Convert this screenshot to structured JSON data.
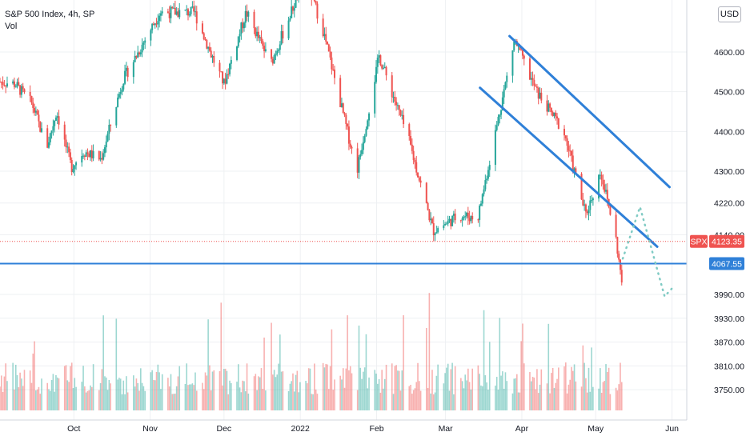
{
  "legend": {
    "symbol_line": "S&P 500 Index, 4h, SP",
    "volume_label": "Vol"
  },
  "currency_button": {
    "label": "USD"
  },
  "colors": {
    "up": "#26a69a",
    "down": "#ef5350",
    "drawing": "#2f80d8",
    "projection": "#80cbc4",
    "price_line": "#ef5350",
    "grid": "#eef0f3"
  },
  "chart_data": {
    "type": "candlestick",
    "interval": "4h",
    "y_ticks": [
      "4600.00",
      "4500.00",
      "4400.00",
      "4300.00",
      "4220.00",
      "4140.00",
      "3990.00",
      "3930.00",
      "3870.00",
      "3810.00",
      "3750.00"
    ],
    "y_tick_values": [
      4600,
      4500,
      4400,
      4300,
      4220,
      4140,
      3990,
      3930,
      3870,
      3810,
      3750
    ],
    "x_ticks": [
      "Oct",
      "Nov",
      "Dec",
      "2022",
      "Feb",
      "Mar",
      "Apr",
      "May",
      "Jun"
    ],
    "x_tick_dates": [
      "2021-10-01",
      "2021-11-01",
      "2021-12-01",
      "2022-01-01",
      "2022-02-01",
      "2022-03-01",
      "2022-04-01",
      "2022-05-01",
      "2022-06-01"
    ],
    "date_range": [
      "2021-09-01",
      "2022-06-07"
    ],
    "price_range": [
      3750,
      4700
    ],
    "last_price": {
      "symbol": "SPX",
      "value": "4123.35",
      "price": 4123.35
    },
    "support_level": {
      "label": "4067.55",
      "price": 4067.55
    },
    "close_path": [
      {
        "date": "2021-09-01",
        "price": 4525
      },
      {
        "date": "2021-09-07",
        "price": 4520
      },
      {
        "date": "2021-09-14",
        "price": 4470
      },
      {
        "date": "2021-09-20",
        "price": 4360
      },
      {
        "date": "2021-09-24",
        "price": 4450
      },
      {
        "date": "2021-09-30",
        "price": 4310
      },
      {
        "date": "2021-10-05",
        "price": 4350
      },
      {
        "date": "2021-10-12",
        "price": 4330
      },
      {
        "date": "2021-10-21",
        "price": 4530
      },
      {
        "date": "2021-11-05",
        "price": 4700
      },
      {
        "date": "2021-11-19",
        "price": 4700
      },
      {
        "date": "2021-11-26",
        "price": 4590
      },
      {
        "date": "2021-12-01",
        "price": 4520
      },
      {
        "date": "2021-12-10",
        "price": 4700
      },
      {
        "date": "2021-12-20",
        "price": 4570
      },
      {
        "date": "2022-01-03",
        "price": 4790
      },
      {
        "date": "2022-01-10",
        "price": 4660
      },
      {
        "date": "2022-01-24",
        "price": 4300
      },
      {
        "date": "2022-02-02",
        "price": 4590
      },
      {
        "date": "2022-02-14",
        "price": 4380
      },
      {
        "date": "2022-02-24",
        "price": 4150
      },
      {
        "date": "2022-03-07",
        "price": 4190
      },
      {
        "date": "2022-03-14",
        "price": 4180
      },
      {
        "date": "2022-03-29",
        "price": 4630
      },
      {
        "date": "2022-04-07",
        "price": 4500
      },
      {
        "date": "2022-04-18",
        "price": 4400
      },
      {
        "date": "2022-04-27",
        "price": 4190
      },
      {
        "date": "2022-05-03",
        "price": 4300
      },
      {
        "date": "2022-05-09",
        "price": 4140
      },
      {
        "date": "2022-05-12",
        "price": 4000
      }
    ],
    "volume": {
      "label": "Vol"
    },
    "drawings": [
      {
        "type": "trend_line",
        "from": {
          "date": "2022-03-27",
          "price": 4640
        },
        "to": {
          "date": "2022-05-31",
          "price": 4260
        }
      },
      {
        "type": "trend_line",
        "from": {
          "date": "2022-03-15",
          "price": 4510
        },
        "to": {
          "date": "2022-05-26",
          "price": 4110
        }
      },
      {
        "type": "horizontal_line",
        "price": 4067.55
      },
      {
        "type": "projection_path",
        "points": [
          {
            "date": "2022-05-12",
            "price": 4080
          },
          {
            "date": "2022-05-19",
            "price": 4210
          },
          {
            "date": "2022-05-29",
            "price": 3985
          },
          {
            "date": "2022-06-01",
            "price": 4005
          }
        ]
      }
    ]
  }
}
